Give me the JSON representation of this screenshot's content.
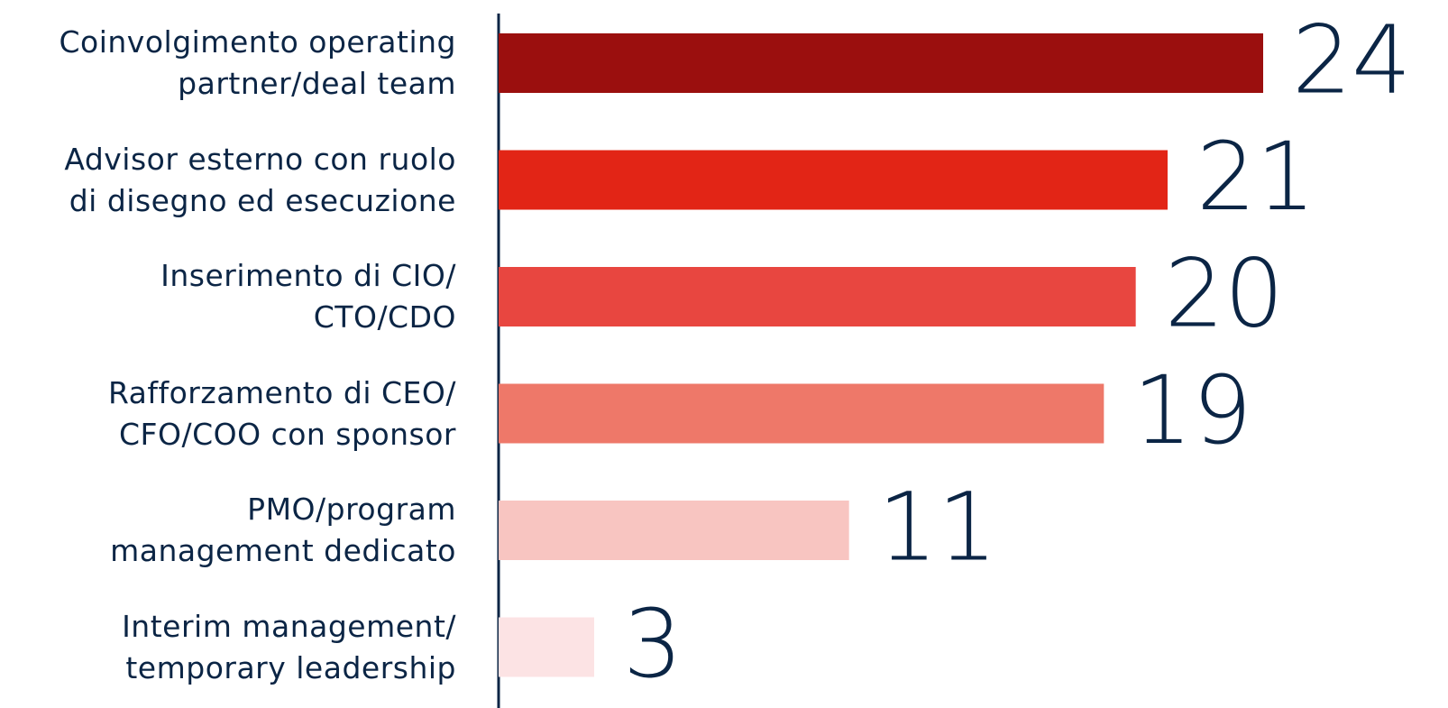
{
  "chart_data": {
    "type": "barh",
    "categories": [
      "Coinvolgimento operating\npartner/deal team",
      "Advisor esterno con ruolo\ndi disegno ed esecuzione",
      "Inserimento di CIO/\nCTO/CDO",
      "Rafforzamento di CEO/\nCFO/COO con sponsor",
      "PMO/program\nmanagement dedicato",
      "Interim management/\ntemporary leadership"
    ],
    "values": [
      24,
      21,
      20,
      19,
      11,
      3
    ],
    "colors": [
      "#9b0f0e",
      "#e22516",
      "#e84640",
      "#ee7869",
      "#f8c5c1",
      "#fce3e4"
    ],
    "xlim": [
      0,
      24
    ]
  }
}
